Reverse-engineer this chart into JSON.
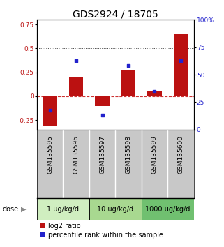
{
  "title": "GDS2924 / 18705",
  "samples": [
    "GSM135595",
    "GSM135596",
    "GSM135597",
    "GSM135598",
    "GSM135599",
    "GSM135600"
  ],
  "log2_ratio": [
    -0.31,
    0.2,
    -0.1,
    0.27,
    0.05,
    0.65
  ],
  "percentile_rank": [
    18,
    63,
    13,
    58,
    35,
    63
  ],
  "ylim_left": [
    -0.35,
    0.8
  ],
  "ylim_right": [
    0,
    100
  ],
  "yticks_left": [
    -0.25,
    0,
    0.25,
    0.5,
    0.75
  ],
  "yticks_right": [
    0,
    25,
    50,
    75,
    100
  ],
  "hlines": [
    0.25,
    0.5
  ],
  "dose_groups": [
    {
      "label": "1 ug/kg/d",
      "indices": [
        0,
        1
      ],
      "color": "#d0eec0"
    },
    {
      "label": "10 ug/kg/d",
      "indices": [
        2,
        3
      ],
      "color": "#a8d890"
    },
    {
      "label": "1000 ug/kg/d",
      "indices": [
        4,
        5
      ],
      "color": "#70c070"
    }
  ],
  "bar_color": "#bb1111",
  "dot_color": "#2222cc",
  "zero_line_color": "#cc3333",
  "hline_color": "#444444",
  "background_samples": "#c8c8c8",
  "title_fontsize": 10,
  "tick_fontsize": 6.5,
  "label_fontsize": 6.5,
  "dose_fontsize": 7,
  "legend_fontsize": 7
}
